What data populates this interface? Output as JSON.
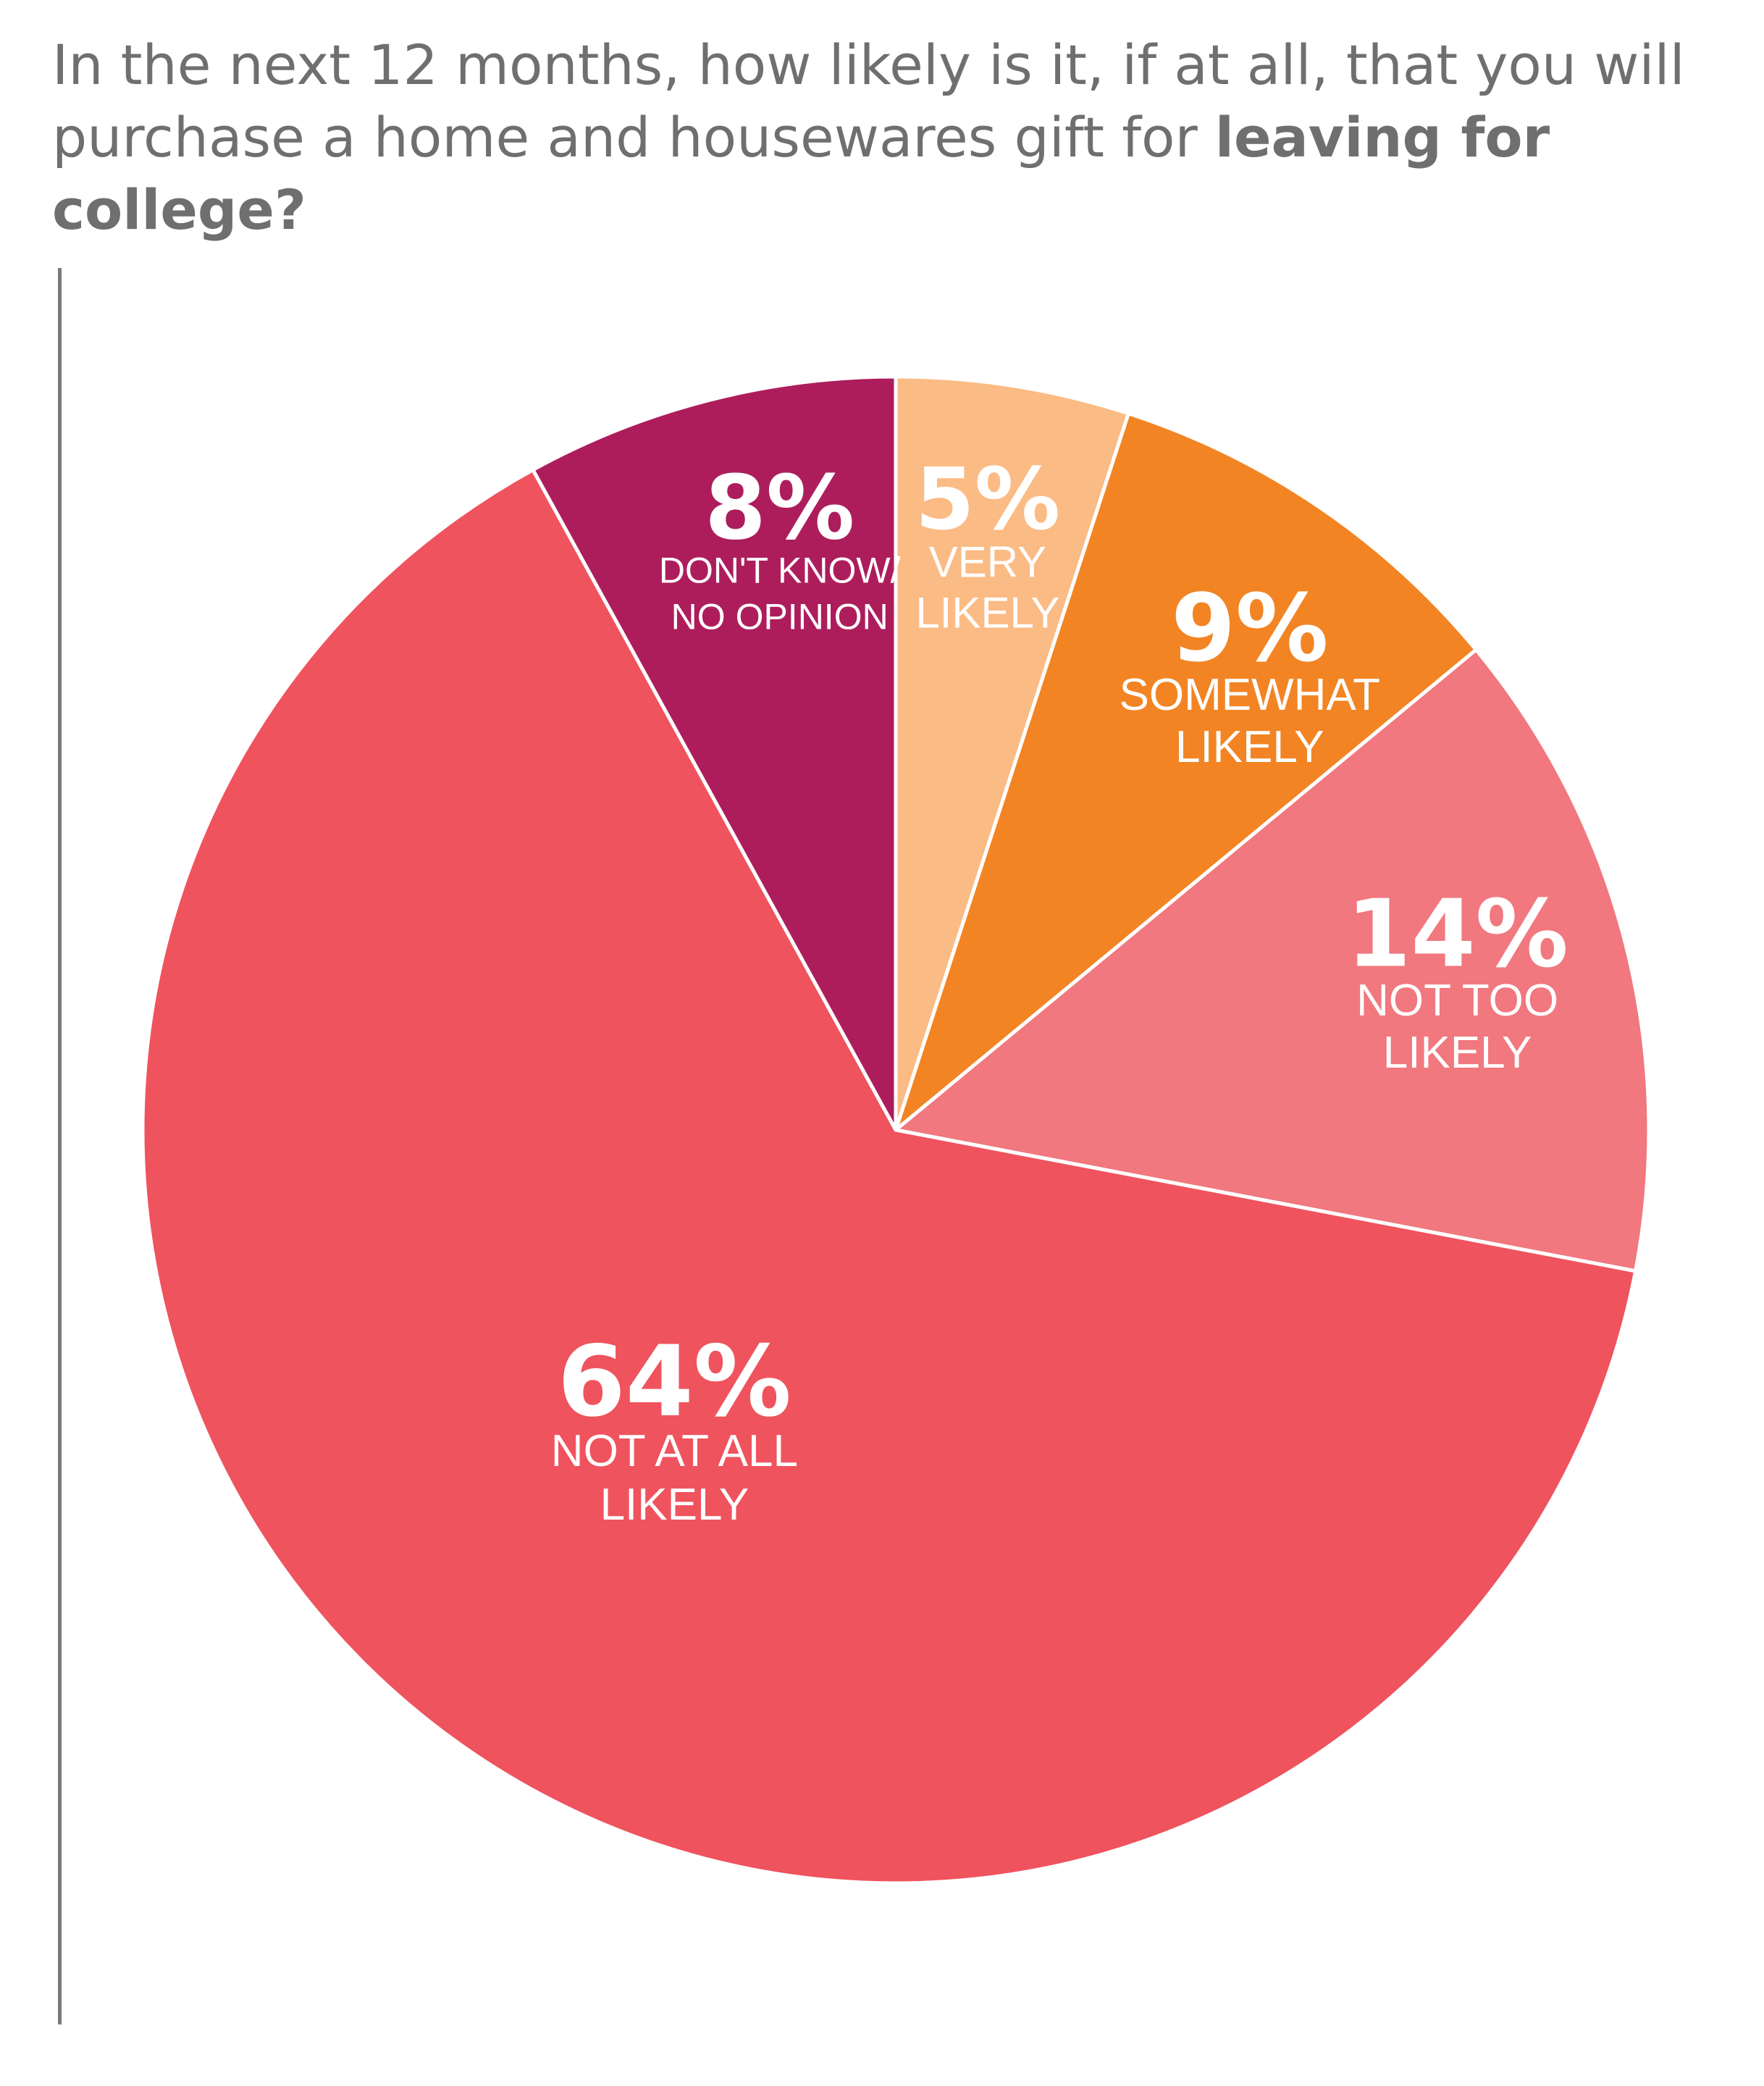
{
  "title": {
    "lead": "In the next 12 months, how likely is it, if at all, that you will purchase a home and housewares gift for ",
    "emphasis": "leaving for college?"
  },
  "chart_data": {
    "type": "pie",
    "title": "In the next 12 months, how likely is it, if at all, that you will purchase a home and housewares gift for leaving for college?",
    "slices": [
      {
        "name": "VERY LIKELY",
        "lines": [
          "VERY",
          "LIKELY"
        ],
        "value": 5,
        "label": "5%",
        "color": "#fbbb85"
      },
      {
        "name": "SOMEWHAT LIKELY",
        "lines": [
          "SOMEWHAT",
          "LIKELY"
        ],
        "value": 9,
        "label": "9%",
        "color": "#f28424"
      },
      {
        "name": "NOT TOO LIKELY",
        "lines": [
          "NOT TOO",
          "LIKELY"
        ],
        "value": 14,
        "label": "14%",
        "color": "#f0787e"
      },
      {
        "name": "NOT AT ALL LIKELY",
        "lines": [
          "NOT AT ALL",
          "LIKELY"
        ],
        "value": 64,
        "label": "64%",
        "color": "#ef535e"
      },
      {
        "name": "DON'T KNOW/ NO OPINION",
        "lines": [
          "DON'T KNOW/",
          "NO OPINION"
        ],
        "value": 8,
        "label": "8%",
        "color": "#ad1d5c"
      }
    ]
  }
}
